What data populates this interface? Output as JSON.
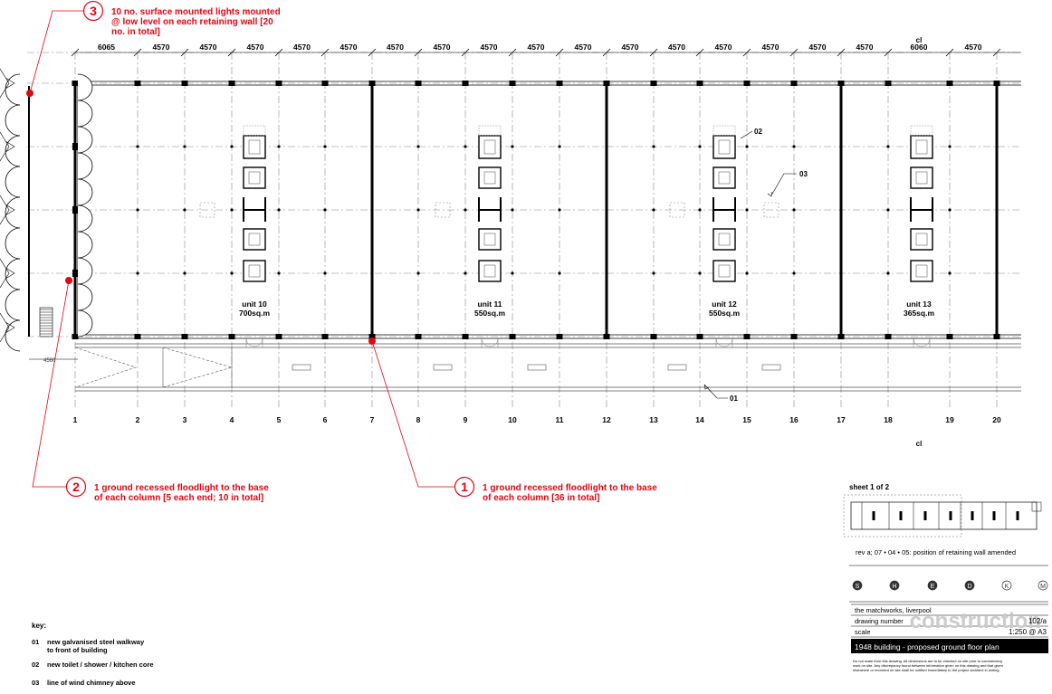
{
  "callouts": [
    {
      "number": "3",
      "lines": [
        "10 no. surface mounted lights mounted",
        "@ low level on each retaining wall [20",
        "no. in total]"
      ]
    },
    {
      "number": "2",
      "lines": [
        "1 ground recessed floodlight to the base",
        "of each column [5 each end; 10 in total]"
      ]
    },
    {
      "number": "1",
      "lines": [
        "1 ground recessed floodlight to the base",
        "of each column [36 in total]"
      ]
    }
  ],
  "dimensions": [
    "6065",
    "4570",
    "4570",
    "4570",
    "4570",
    "4570",
    "4570",
    "4570",
    "4570",
    "4570",
    "4570",
    "4570",
    "4570",
    "4570",
    "4570",
    "4570",
    "4570",
    "6060",
    "4570"
  ],
  "centreline_labels": [
    "cl",
    "cl"
  ],
  "gridlines": [
    "1",
    "2",
    "3",
    "4",
    "5",
    "6",
    "7",
    "8",
    "9",
    "10",
    "11",
    "12",
    "13",
    "14",
    "15",
    "16",
    "17",
    "18",
    "19",
    "20"
  ],
  "units": [
    {
      "name": "unit 10",
      "area": "700sq.m"
    },
    {
      "name": "unit 11",
      "area": "550sq.m"
    },
    {
      "name": "unit 12",
      "area": "550sq.m"
    },
    {
      "name": "unit 13",
      "area": "365sq.m"
    }
  ],
  "markers": [
    "02",
    "03",
    "01"
  ],
  "end_dimension": "4560",
  "key": {
    "title": "key:",
    "items": [
      {
        "code": "01",
        "lines": [
          "new galvanised steel walkway",
          "to front of building"
        ]
      },
      {
        "code": "02",
        "lines": [
          "new toilet / shower / kitchen core"
        ]
      },
      {
        "code": "03",
        "lines": [
          "line of wind chimney above"
        ]
      }
    ]
  },
  "title_block": {
    "sheet": "sheet 1 of 2",
    "revision": "rev a; 07 • 04 • 05: position of retaining wall amended",
    "stages": [
      "S",
      "H",
      "E",
      "D",
      "K",
      "M"
    ],
    "project": "the matchworks, liverpool",
    "drawing_number_label": "drawing number",
    "drawing_number": "102/a",
    "scale_label": "scale",
    "scale": "1:250 @ A3",
    "watermark": "construction",
    "title": "1948 building - proposed ground floor plan",
    "disclaimer": [
      "Do not scale from this drawing. All dimensions are to be checked on site prior to commencing",
      "work on site. Any discrepancy found between information given on this drawing and that given",
      "elsewhere or recorded on site shall be notified immediately to the project architect in writing."
    ]
  }
}
